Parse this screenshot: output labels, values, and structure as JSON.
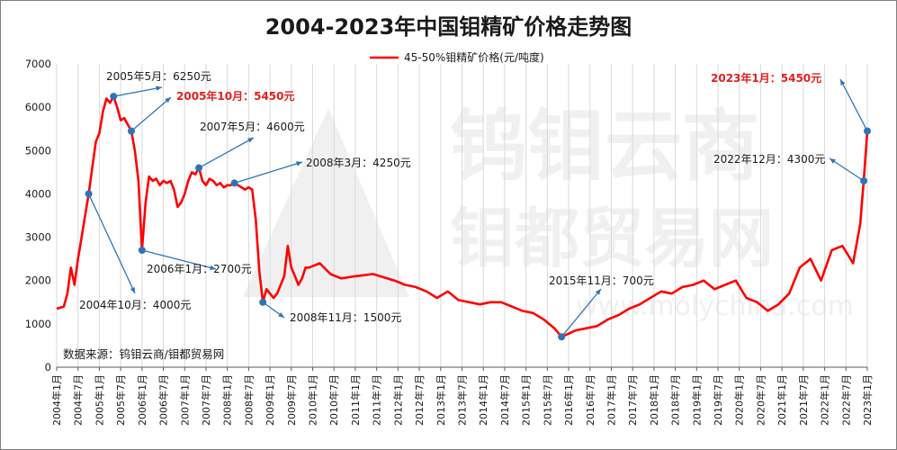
{
  "chart_data": {
    "type": "line",
    "title": "2004-2023年中国钼精矿价格走势图",
    "series": [
      {
        "name": "45-50%钼精矿价格(元/吨度)",
        "color": "#ff0000",
        "points": [
          [
            "2004-01",
            1350
          ],
          [
            "2004-03",
            1400
          ],
          [
            "2004-04",
            1700
          ],
          [
            "2004-05",
            2300
          ],
          [
            "2004-06",
            1900
          ],
          [
            "2004-07",
            2500
          ],
          [
            "2004-08",
            3000
          ],
          [
            "2004-09",
            3500
          ],
          [
            "2004-10",
            4000
          ],
          [
            "2004-11",
            4600
          ],
          [
            "2004-12",
            5200
          ],
          [
            "2005-01",
            5400
          ],
          [
            "2005-02",
            5900
          ],
          [
            "2005-03",
            6200
          ],
          [
            "2005-04",
            6100
          ],
          [
            "2005-05",
            6250
          ],
          [
            "2005-06",
            6000
          ],
          [
            "2005-07",
            5700
          ],
          [
            "2005-08",
            5750
          ],
          [
            "2005-09",
            5600
          ],
          [
            "2005-10",
            5450
          ],
          [
            "2005-11",
            5000
          ],
          [
            "2005-12",
            4300
          ],
          [
            "2006-01",
            2700
          ],
          [
            "2006-02",
            3800
          ],
          [
            "2006-03",
            4400
          ],
          [
            "2006-04",
            4300
          ],
          [
            "2006-05",
            4350
          ],
          [
            "2006-06",
            4200
          ],
          [
            "2006-07",
            4300
          ],
          [
            "2006-08",
            4250
          ],
          [
            "2006-09",
            4300
          ],
          [
            "2006-10",
            4100
          ],
          [
            "2006-11",
            3700
          ],
          [
            "2006-12",
            3800
          ],
          [
            "2007-01",
            4000
          ],
          [
            "2007-02",
            4300
          ],
          [
            "2007-03",
            4500
          ],
          [
            "2007-04",
            4450
          ],
          [
            "2007-05",
            4600
          ],
          [
            "2007-06",
            4300
          ],
          [
            "2007-07",
            4200
          ],
          [
            "2007-08",
            4350
          ],
          [
            "2007-09",
            4300
          ],
          [
            "2007-10",
            4200
          ],
          [
            "2007-11",
            4250
          ],
          [
            "2007-12",
            4150
          ],
          [
            "2008-01",
            4200
          ],
          [
            "2008-02",
            4200
          ],
          [
            "2008-03",
            4250
          ],
          [
            "2008-04",
            4200
          ],
          [
            "2008-05",
            4150
          ],
          [
            "2008-06",
            4100
          ],
          [
            "2008-07",
            4150
          ],
          [
            "2008-08",
            4100
          ],
          [
            "2008-09",
            3400
          ],
          [
            "2008-10",
            2200
          ],
          [
            "2008-11",
            1500
          ],
          [
            "2008-12",
            1800
          ],
          [
            "2009-01",
            1700
          ],
          [
            "2009-02",
            1600
          ],
          [
            "2009-03",
            1700
          ],
          [
            "2009-04",
            1900
          ],
          [
            "2009-05",
            2100
          ],
          [
            "2009-06",
            2800
          ],
          [
            "2009-07",
            2300
          ],
          [
            "2009-08",
            2100
          ],
          [
            "2009-09",
            1900
          ],
          [
            "2009-10",
            2050
          ],
          [
            "2009-11",
            2300
          ],
          [
            "2009-12",
            2300
          ],
          [
            "2010-03",
            2400
          ],
          [
            "2010-06",
            2150
          ],
          [
            "2010-09",
            2050
          ],
          [
            "2011-01",
            2100
          ],
          [
            "2011-06",
            2150
          ],
          [
            "2011-12",
            2000
          ],
          [
            "2012-03",
            1900
          ],
          [
            "2012-06",
            1850
          ],
          [
            "2012-09",
            1750
          ],
          [
            "2012-12",
            1600
          ],
          [
            "2013-03",
            1750
          ],
          [
            "2013-06",
            1550
          ],
          [
            "2013-12",
            1450
          ],
          [
            "2014-03",
            1500
          ],
          [
            "2014-06",
            1500
          ],
          [
            "2014-09",
            1400
          ],
          [
            "2014-12",
            1300
          ],
          [
            "2015-03",
            1250
          ],
          [
            "2015-06",
            1100
          ],
          [
            "2015-09",
            900
          ],
          [
            "2015-11",
            700
          ],
          [
            "2016-03",
            850
          ],
          [
            "2016-06",
            900
          ],
          [
            "2016-09",
            950
          ],
          [
            "2016-12",
            1100
          ],
          [
            "2017-03",
            1200
          ],
          [
            "2017-06",
            1350
          ],
          [
            "2017-09",
            1450
          ],
          [
            "2017-12",
            1600
          ],
          [
            "2018-03",
            1750
          ],
          [
            "2018-06",
            1700
          ],
          [
            "2018-09",
            1850
          ],
          [
            "2018-12",
            1900
          ],
          [
            "2019-03",
            2000
          ],
          [
            "2019-06",
            1800
          ],
          [
            "2019-09",
            1900
          ],
          [
            "2019-12",
            2000
          ],
          [
            "2020-03",
            1600
          ],
          [
            "2020-06",
            1500
          ],
          [
            "2020-09",
            1300
          ],
          [
            "2020-12",
            1450
          ],
          [
            "2021-03",
            1700
          ],
          [
            "2021-06",
            2300
          ],
          [
            "2021-09",
            2500
          ],
          [
            "2021-12",
            2000
          ],
          [
            "2022-03",
            2700
          ],
          [
            "2022-06",
            2800
          ],
          [
            "2022-09",
            2400
          ],
          [
            "2022-11",
            3300
          ],
          [
            "2022-12",
            4300
          ],
          [
            "2023-01",
            5450
          ]
        ]
      }
    ],
    "ylim": [
      0,
      7000
    ],
    "yticks": [
      "0",
      "1000",
      "2000",
      "3000",
      "4000",
      "5000",
      "6000",
      "7000"
    ],
    "xrange": [
      "2004-01",
      "2023-01"
    ],
    "xticks": [
      "2004年1月",
      "2004年7月",
      "2005年1月",
      "2005年7月",
      "2006年1月",
      "2006年7月",
      "2007年1月",
      "2007年7月",
      "2008年1月",
      "2008年7月",
      "2009年1月",
      "2009年7月",
      "2010年1月",
      "2010年7月",
      "2011年1月",
      "2011年7月",
      "2012年1月",
      "2012年7月",
      "2013年1月",
      "2013年7月",
      "2014年1月",
      "2014年7月",
      "2015年1月",
      "2015年7月",
      "2016年1月",
      "2016年7月",
      "2017年1月",
      "2017年7月",
      "2018年1月",
      "2018年7月",
      "2019年1月",
      "2019年7月",
      "2020年1月",
      "2020年7月",
      "2021年1月",
      "2021年7月",
      "2022年1月",
      "2022年7月",
      "2023年1月"
    ],
    "grid": "vertical",
    "legend_position": "top-center",
    "annotations": [
      {
        "date": "2004-10",
        "value": 4000,
        "text": "2004年10月：4000元",
        "color": "#1a1a1a"
      },
      {
        "date": "2005-05",
        "value": 6250,
        "text": "2005年5月：6250元",
        "color": "#1a1a1a"
      },
      {
        "date": "2005-10",
        "value": 5450,
        "text": "2005年10月：5450元",
        "color": "#e02020"
      },
      {
        "date": "2006-01",
        "value": 2700,
        "text": "2006年1月：2700元",
        "color": "#1a1a1a"
      },
      {
        "date": "2007-05",
        "value": 4600,
        "text": "2007年5月：4600元",
        "color": "#1a1a1a"
      },
      {
        "date": "2008-03",
        "value": 4250,
        "text": "2008年3月：4250元",
        "color": "#1a1a1a"
      },
      {
        "date": "2008-11",
        "value": 1500,
        "text": "2008年11月：1500元",
        "color": "#1a1a1a"
      },
      {
        "date": "2015-11",
        "value": 700,
        "text": "2015年11月：700元",
        "color": "#1a1a1a"
      },
      {
        "date": "2022-12",
        "value": 4300,
        "text": "2022年12月：4300元",
        "color": "#1a1a1a"
      },
      {
        "date": "2023-01",
        "value": 5450,
        "text": "2023年1月：5450元",
        "color": "#e02020"
      }
    ],
    "watermark": [
      "钨钼云商",
      "钼都贸易网",
      "www.molychina.com"
    ],
    "source_note": "数据来源：钨钼云商/钼都贸易网"
  },
  "colors": {
    "line": "#ff0000",
    "marker": "#2e75b6",
    "arrow": "#2e75b6",
    "grid": "#d9d9d9",
    "watermark": "#f0f0f0"
  }
}
